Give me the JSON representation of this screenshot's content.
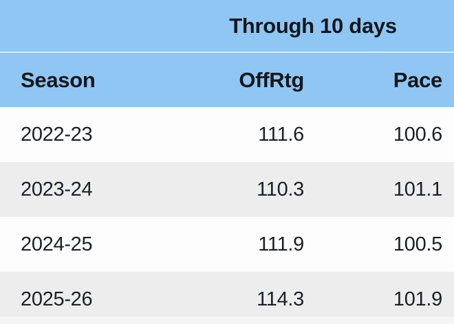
{
  "table": {
    "title": "Through 10 days",
    "columns": {
      "season": "Season",
      "offrtg": "OffRtg",
      "pace": "Pace"
    },
    "rows": [
      {
        "season": "2022-23",
        "offrtg": "111.6",
        "pace": "100.6"
      },
      {
        "season": "2023-24",
        "offrtg": "110.3",
        "pace": "101.1"
      },
      {
        "season": "2024-25",
        "offrtg": "111.9",
        "pace": "100.5"
      },
      {
        "season": "2025-26",
        "offrtg": "114.3",
        "pace": "101.9"
      }
    ],
    "colors": {
      "header_bg": "#8fc6f3",
      "divider": "#ddeefb",
      "row_bg": "#fdfdfd",
      "row_alt_bg": "#ededed",
      "text": "#14171c"
    }
  }
}
